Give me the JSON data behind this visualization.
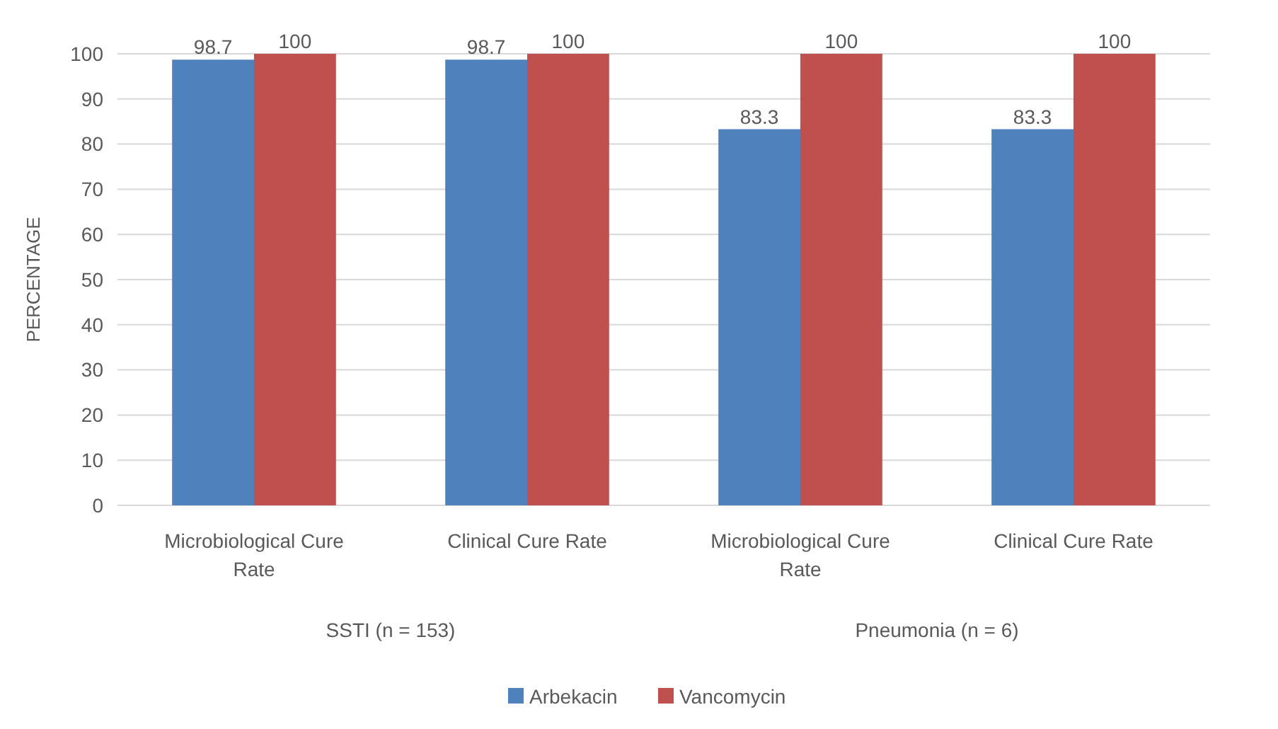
{
  "chart_data": {
    "type": "bar",
    "ylabel": "PERCENTAGE",
    "categories": [
      "Microbiological Cure Rate",
      "Clinical Cure Rate",
      "Microbiological Cure Rate",
      "Clinical Cure Rate"
    ],
    "series": [
      {
        "name": "Arbekacin",
        "color": "#4f81bd",
        "values": [
          98.7,
          98.7,
          83.3,
          83.3
        ]
      },
      {
        "name": "Vancomycin",
        "color": "#c0504d",
        "values": [
          100,
          100,
          100,
          100
        ]
      }
    ],
    "ylim": [
      0,
      100
    ],
    "yticks": [
      0,
      10,
      20,
      30,
      40,
      50,
      60,
      70,
      80,
      90,
      100
    ],
    "grid": "y",
    "legend": "bottom",
    "data_labels": true,
    "annotations": [
      "SSTI (n = 153)",
      "Pneumonia (n = 6)"
    ]
  }
}
